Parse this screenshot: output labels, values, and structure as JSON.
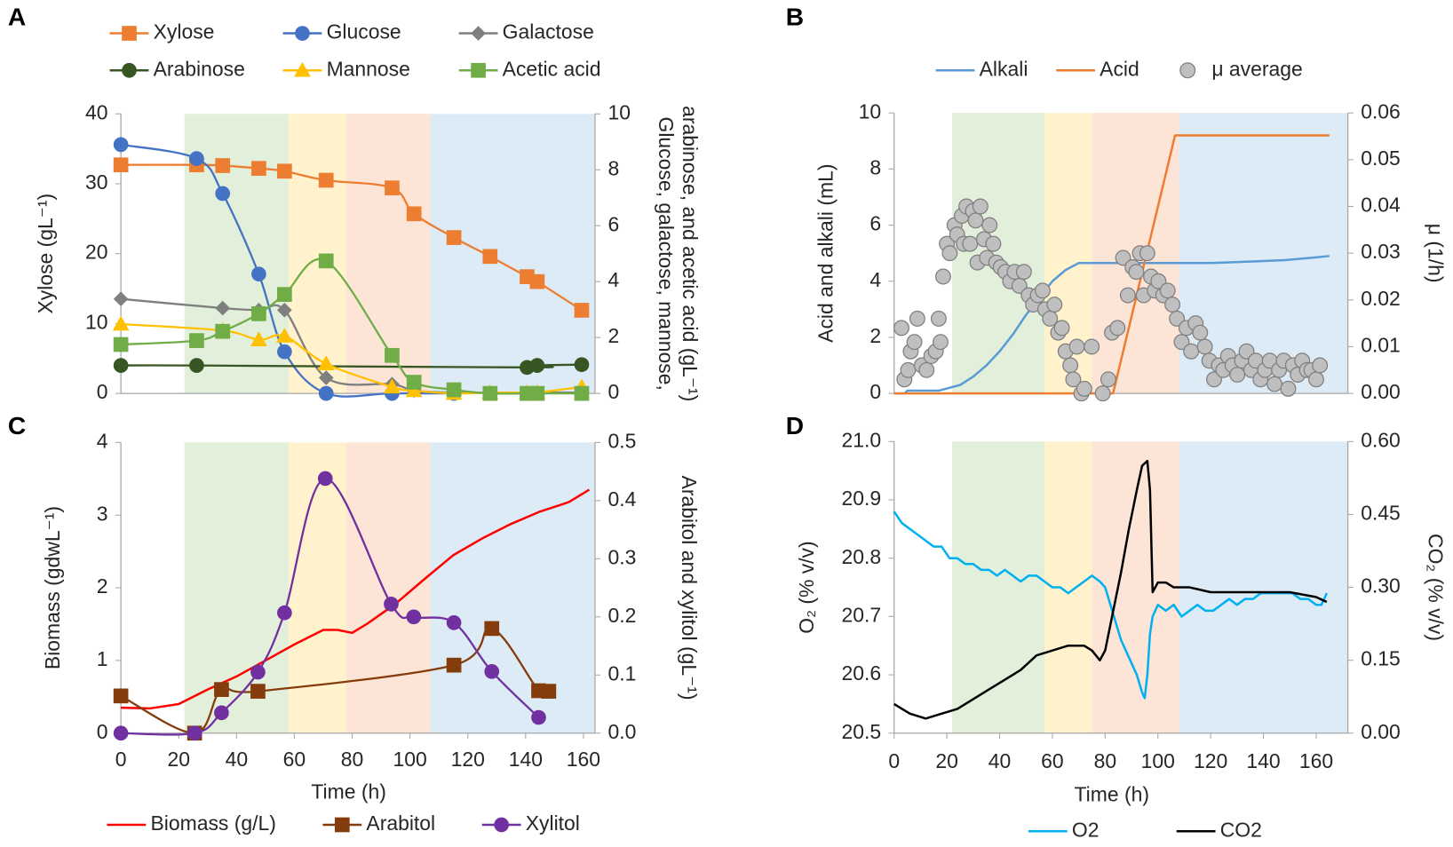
{
  "chart_data": [
    {
      "type": "line",
      "panel": "A",
      "legend": "top",
      "y_label": "Xylose (gL⁻¹)",
      "y2_label": [
        "Glucose, galactose, mannose,",
        "arabinose, and acetic acid (gL⁻¹)"
      ],
      "xlim": [
        0,
        164
      ],
      "ylim": [
        0,
        40
      ],
      "yticks": [
        0,
        10,
        20,
        30,
        40
      ],
      "y2lim": [
        0,
        10
      ],
      "y2ticks": [
        0,
        2,
        4,
        6,
        8,
        10
      ],
      "bands": [
        {
          "start": 22,
          "end": 58,
          "color": "#e2efda"
        },
        {
          "start": 58,
          "end": 78,
          "color": "#fff2cc"
        },
        {
          "start": 78,
          "end": 107,
          "color": "#fce4d6"
        },
        {
          "start": 107,
          "end": 164,
          "color": "#ddebf7"
        }
      ],
      "series": [
        {
          "name": "Xylose",
          "color": "#ed7d31",
          "marker": "square",
          "smooth": true,
          "axis": "y",
          "x": [
            0,
            26.2,
            35.2,
            47.7,
            56.6,
            71,
            93.8,
            101.4,
            115.2,
            127.7,
            140.5,
            144,
            159.4
          ],
          "values": [
            32.7,
            32.7,
            32.6,
            32.2,
            31.8,
            30.5,
            29.4,
            25.7,
            22.3,
            19.6,
            16.7,
            16.0,
            11.9
          ]
        },
        {
          "name": "Glucose",
          "color": "#4472c4",
          "marker": "circle",
          "smooth": true,
          "axis": "y2",
          "x": [
            0,
            26.2,
            35.2,
            47.7,
            56.6,
            71,
            93.8,
            115.2
          ],
          "values": [
            8.9,
            8.4,
            7.15,
            4.27,
            1.49,
            0,
            0,
            0
          ]
        },
        {
          "name": "Galactose",
          "color": "#7f7f7f",
          "marker": "diamond",
          "smooth": true,
          "axis": "y2",
          "x": [
            0,
            35.2,
            47.7,
            56.6,
            71,
            93.8,
            101.4,
            115.2,
            127.7,
            140.5,
            144,
            159.4
          ],
          "values": [
            3.38,
            3.05,
            2.98,
            2.98,
            0.56,
            0.33,
            0.1,
            0.03,
            0.03,
            0.03,
            0.03,
            0.03
          ]
        },
        {
          "name": "Arabinose",
          "color": "#375623",
          "marker": "circle",
          "smooth": true,
          "axis": "y2",
          "x": [
            0,
            26.2,
            140.5,
            144,
            159.4
          ],
          "values": [
            1.0,
            1.0,
            0.93,
            1.0,
            1.03
          ]
        },
        {
          "name": "Mannose",
          "color": "#ffc000",
          "marker": "triangle",
          "smooth": true,
          "axis": "y2",
          "x": [
            0,
            35.2,
            47.7,
            56.6,
            71,
            93.8,
            101.4,
            115.2,
            127.7,
            140.5,
            144,
            159.4
          ],
          "values": [
            2.48,
            2.25,
            1.92,
            2.05,
            1.06,
            0.23,
            0.1,
            0,
            0.03,
            0.03,
            0.03,
            0.23
          ]
        },
        {
          "name": "Acetic acid",
          "color": "#70ad47",
          "marker": "square",
          "smooth": true,
          "axis": "y2",
          "x": [
            0,
            26.2,
            35.2,
            47.7,
            56.6,
            71,
            93.8,
            101.4,
            115.2,
            127.7,
            140.5,
            144,
            159.4
          ],
          "values": [
            1.75,
            1.89,
            2.22,
            2.85,
            3.54,
            4.74,
            1.36,
            0.4,
            0.13,
            0,
            0,
            0,
            0
          ]
        }
      ]
    },
    {
      "type": "line",
      "panel": "B",
      "legend": "top",
      "y_label": "Acid and alkali (mL)",
      "y2_label": [
        "μ (1/h)"
      ],
      "xlim": [
        0,
        172
      ],
      "ylim": [
        0,
        10
      ],
      "yticks": [
        0,
        2,
        4,
        6,
        8,
        10
      ],
      "y2lim": [
        0,
        0.06
      ],
      "y2ticks": [
        {
          "value": 0,
          "label": "0.00"
        },
        0.01,
        0.02,
        0.03,
        0.04,
        0.05,
        0.06
      ],
      "bands": [
        {
          "start": 22,
          "end": 57,
          "color": "#e2efda"
        },
        {
          "start": 57,
          "end": 75,
          "color": "#fff2cc"
        },
        {
          "start": 75,
          "end": 108,
          "color": "#fce4d6"
        },
        {
          "start": 108,
          "end": 172,
          "color": "#ddebf7"
        }
      ],
      "series": [
        {
          "name": "Alkali",
          "color": "#5b9bd5",
          "marker": null,
          "axis": "y",
          "x": [
            0,
            4,
            5,
            17,
            25,
            30,
            35,
            40,
            45,
            50,
            55,
            60,
            65,
            70,
            120,
            135,
            148,
            160,
            165
          ],
          "values": [
            0,
            0,
            0.1,
            0.1,
            0.3,
            0.6,
            1.0,
            1.5,
            2.1,
            2.8,
            3.4,
            4.0,
            4.4,
            4.65,
            4.65,
            4.7,
            4.75,
            4.85,
            4.9
          ]
        },
        {
          "name": "Acid",
          "color": "#ed7d31",
          "marker": null,
          "axis": "y",
          "x": [
            0,
            83,
            106.5,
            165
          ],
          "values": [
            0,
            0,
            9.2,
            9.2
          ]
        },
        {
          "name": "μ average",
          "color": "#bfbfbf",
          "marker": "circle",
          "style": "scatter",
          "axis": "y2",
          "x": [
            2.8,
            3.9,
            5.3,
            6.3,
            7.7,
            8.8,
            10.5,
            12.3,
            14.1,
            15.8,
            17.6,
            16.9,
            18.6,
            20,
            21.1,
            22.9,
            23.9,
            25.7,
            26.4,
            27.4,
            28.8,
            29.9,
            30.9,
            31.6,
            32.7,
            34.1,
            35.2,
            36.2,
            37.6,
            38.7,
            40.4,
            42.2,
            44,
            45.7,
            47.5,
            49.2,
            51,
            52.7,
            54.5,
            56.3,
            57.3,
            59.1,
            60.8,
            62.2,
            63.6,
            65,
            66.8,
            67.9,
            69.3,
            71,
            72.1,
            74.9,
            79.1,
            81.2,
            82.6,
            84.7,
            86.8,
            88.6,
            90.4,
            91.8,
            93.2,
            94.6,
            96,
            97.4,
            98.8,
            100.2,
            102,
            103.7,
            105.5,
            107.2,
            109,
            110.8,
            112.6,
            114.3,
            116,
            117.8,
            119.5,
            121.3,
            123.1,
            124.8,
            126.6,
            128.3,
            130.1,
            131.9,
            133.6,
            135.4,
            137.1,
            138.9,
            140.6,
            142.4,
            144.2,
            145.9,
            147.7,
            149.4,
            151.2,
            153,
            154.7,
            156.5,
            158.2,
            160,
            161.4
          ],
          "values": [
            0.014,
            0.003,
            0.005,
            0.009,
            0.011,
            0.016,
            0.006,
            0.005,
            0.008,
            0.009,
            0.011,
            0.016,
            0.025,
            0.032,
            0.03,
            0.036,
            0.034,
            0.038,
            0.032,
            0.04,
            0.032,
            0.039,
            0.037,
            0.028,
            0.04,
            0.033,
            0.029,
            0.036,
            0.032,
            0.028,
            0.027,
            0.026,
            0.024,
            0.026,
            0.023,
            0.026,
            0.021,
            0.019,
            0.021,
            0.022,
            0.018,
            0.016,
            0.019,
            0.013,
            0.014,
            0.009,
            0.006,
            0.003,
            0.01,
            0,
            0.001,
            0.01,
            0,
            0.003,
            0.013,
            0.014,
            0.029,
            0.021,
            0.027,
            0.026,
            0.03,
            0.021,
            0.03,
            0.025,
            0.022,
            0.024,
            0.021,
            0.022,
            0.019,
            0.016,
            0.011,
            0.014,
            0.009,
            0.015,
            0.013,
            0.01,
            0.007,
            0.003,
            0.006,
            0.005,
            0.008,
            0.006,
            0.004,
            0.007,
            0.009,
            0.005,
            0.007,
            0.003,
            0.005,
            0.007,
            0.002,
            0.005,
            0.007,
            0.001,
            0.006,
            0.004,
            0.007,
            0.005,
            0.005,
            0.003,
            0.006
          ]
        }
      ]
    },
    {
      "type": "line",
      "panel": "C",
      "legend": "bottom",
      "y_label": "Biomass (gdwL⁻¹)",
      "y2_label": [
        "Arabitol and xylitol (gL⁻¹)"
      ],
      "x_label": "Time (h)",
      "xlim": [
        0,
        164
      ],
      "xticks": [
        0,
        20,
        40,
        60,
        80,
        100,
        120,
        140,
        160
      ],
      "ylim": [
        0,
        4
      ],
      "yticks": [
        0,
        1,
        2,
        3,
        4
      ],
      "y2lim": [
        0,
        0.5
      ],
      "y2ticks": [
        {
          "value": 0,
          "label": "0.0"
        },
        0.1,
        0.2,
        0.3,
        0.4,
        0.5
      ],
      "bands": [
        {
          "start": 22,
          "end": 58,
          "color": "#e2efda"
        },
        {
          "start": 58,
          "end": 78,
          "color": "#fff2cc"
        },
        {
          "start": 78,
          "end": 107,
          "color": "#fce4d6"
        },
        {
          "start": 107,
          "end": 164,
          "color": "#ddebf7"
        }
      ],
      "series": [
        {
          "name": "Biomass (g/L)",
          "color": "#ff0000",
          "marker": null,
          "axis": "y",
          "x": [
            0,
            10,
            20,
            30,
            40,
            50,
            60,
            70,
            75,
            80,
            85,
            95,
            105,
            115,
            125,
            135,
            145,
            155,
            162
          ],
          "values": [
            0.35,
            0.34,
            0.4,
            0.6,
            0.78,
            1.0,
            1.22,
            1.42,
            1.42,
            1.38,
            1.5,
            1.78,
            2.12,
            2.45,
            2.68,
            2.88,
            3.05,
            3.18,
            3.35
          ]
        },
        {
          "name": "Arabitol",
          "color": "#843c0c",
          "marker": "square",
          "smooth": true,
          "axis": "y2",
          "x": [
            0,
            25.5,
            34.8,
            47.4,
            115.2,
            128.3,
            144.5,
            148
          ],
          "values": [
            0.064,
            0,
            0.075,
            0.072,
            0.117,
            0.18,
            0.073,
            0.072
          ]
        },
        {
          "name": "Xylitol",
          "color": "#7030a0",
          "marker": "circle",
          "smooth": true,
          "axis": "y2",
          "x": [
            0,
            25.5,
            34.8,
            47.4,
            56.6,
            70.7,
            93.5,
            101.3,
            115.2,
            128.3,
            144.5
          ],
          "values": [
            0,
            0,
            0.035,
            0.105,
            0.207,
            0.438,
            0.222,
            0.2,
            0.19,
            0.106,
            0.027
          ]
        }
      ]
    },
    {
      "type": "line",
      "panel": "D",
      "legend": "bottom",
      "y_label": "O₂ (% v/v)",
      "y2_label": [
        "CO₂ (% v/v)"
      ],
      "x_label": "Time (h)",
      "xlim": [
        0,
        172
      ],
      "xticks": [
        0,
        20,
        40,
        60,
        80,
        100,
        120,
        140,
        160
      ],
      "ylim": [
        20.5,
        21.0
      ],
      "yticks": [
        20.5,
        20.6,
        20.7,
        20.8,
        20.9,
        {
          "value": 21.0,
          "label": "21.0"
        }
      ],
      "y2lim": [
        0,
        0.6
      ],
      "y2ticks": [
        {
          "value": 0,
          "label": "0.00"
        },
        0.15,
        {
          "value": 0.3,
          "label": "0.30"
        },
        0.45,
        {
          "value": 0.6,
          "label": "0.60"
        }
      ],
      "bands": [
        {
          "start": 22,
          "end": 57,
          "color": "#e2efda"
        },
        {
          "start": 57,
          "end": 75,
          "color": "#fff2cc"
        },
        {
          "start": 75,
          "end": 108,
          "color": "#fce4d6"
        },
        {
          "start": 108,
          "end": 172,
          "color": "#ddebf7"
        }
      ],
      "series": [
        {
          "name": "O2",
          "color": "#00b0f0",
          "marker": null,
          "axis": "y",
          "x": [
            0,
            3,
            6,
            9,
            12,
            15,
            18,
            21,
            24,
            27,
            30,
            33,
            36,
            39,
            42,
            45,
            48,
            51,
            54,
            57,
            60,
            63,
            66,
            69,
            72,
            75,
            78,
            80,
            82,
            84,
            86,
            88,
            90,
            92,
            94,
            95,
            96,
            97,
            98,
            100,
            103,
            106,
            109,
            112,
            115,
            118,
            121,
            124,
            127,
            130,
            133,
            136,
            139,
            142,
            145,
            148,
            151,
            154,
            157,
            160,
            162,
            164
          ],
          "values": [
            20.88,
            20.86,
            20.85,
            20.84,
            20.83,
            20.82,
            20.82,
            20.8,
            20.8,
            20.79,
            20.79,
            20.78,
            20.78,
            20.77,
            20.78,
            20.77,
            20.76,
            20.77,
            20.77,
            20.76,
            20.75,
            20.75,
            20.74,
            20.75,
            20.76,
            20.77,
            20.76,
            20.75,
            20.72,
            20.69,
            20.66,
            20.64,
            20.62,
            20.6,
            20.57,
            20.56,
            20.6,
            20.67,
            20.7,
            20.72,
            20.71,
            20.72,
            20.7,
            20.71,
            20.72,
            20.71,
            20.71,
            20.72,
            20.73,
            20.72,
            20.73,
            20.73,
            20.74,
            20.74,
            20.74,
            20.74,
            20.74,
            20.73,
            20.73,
            20.72,
            20.72,
            20.74
          ]
        },
        {
          "name": "CO2",
          "color": "#000000",
          "marker": null,
          "axis": "y2",
          "x": [
            0,
            3,
            6,
            12,
            18,
            24,
            30,
            36,
            42,
            48,
            54,
            60,
            66,
            72,
            75,
            78,
            80,
            83,
            86,
            89,
            92,
            94,
            96,
            97,
            98,
            100,
            103,
            106,
            112,
            120,
            130,
            140,
            150,
            160,
            164
          ],
          "values": [
            0.06,
            0.05,
            0.04,
            0.03,
            0.04,
            0.05,
            0.07,
            0.09,
            0.11,
            0.13,
            0.16,
            0.17,
            0.18,
            0.18,
            0.17,
            0.15,
            0.17,
            0.25,
            0.33,
            0.42,
            0.5,
            0.55,
            0.56,
            0.5,
            0.29,
            0.31,
            0.31,
            0.3,
            0.3,
            0.29,
            0.29,
            0.29,
            0.29,
            0.28,
            0.27
          ]
        }
      ]
    }
  ]
}
